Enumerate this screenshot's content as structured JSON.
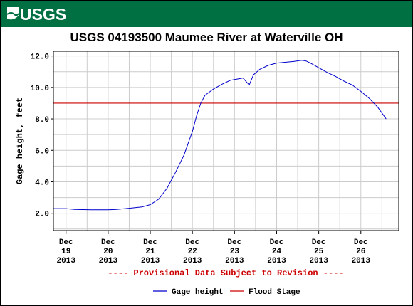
{
  "header": {
    "logo_text": "USGS",
    "title": "USGS 04193500 Maumee River at Waterville OH"
  },
  "colors": {
    "banner": "#006F41",
    "gage_line": "#0000CC",
    "flood_line": "#CC0000",
    "grid": "#CCCCCC",
    "provisional_text": "#CC0000"
  },
  "chart_data": {
    "type": "line",
    "title": "USGS 04193500 Maumee River at Waterville OH",
    "xlabel": "",
    "ylabel": "Gage height, feet",
    "x_unit": "day of December 2013",
    "ylim": [
      0.9,
      12.3
    ],
    "yticks": [
      "2.0",
      "4.0",
      "6.0",
      "8.0",
      "10.0",
      "12.0"
    ],
    "ytick_values": [
      2,
      4,
      6,
      8,
      10,
      12
    ],
    "xticks": [
      {
        "x": 19,
        "lines": [
          "Dec",
          "19",
          "2013"
        ]
      },
      {
        "x": 20,
        "lines": [
          "Dec",
          "20",
          "2013"
        ]
      },
      {
        "x": 21,
        "lines": [
          "Dec",
          "21",
          "2013"
        ]
      },
      {
        "x": 22,
        "lines": [
          "Dec",
          "22",
          "2013"
        ]
      },
      {
        "x": 23,
        "lines": [
          "Dec",
          "23",
          "2013"
        ]
      },
      {
        "x": 24,
        "lines": [
          "Dec",
          "24",
          "2013"
        ]
      },
      {
        "x": 25,
        "lines": [
          "Dec",
          "25",
          "2013"
        ]
      },
      {
        "x": 26,
        "lines": [
          "Dec",
          "26",
          "2013"
        ]
      }
    ],
    "xlim": [
      18.7,
      26.9
    ],
    "grid": true,
    "legend_position": "bottom",
    "series": [
      {
        "name": "Gage height",
        "points": [
          [
            18.7,
            2.3
          ],
          [
            19.0,
            2.3
          ],
          [
            19.2,
            2.25
          ],
          [
            19.6,
            2.22
          ],
          [
            20.0,
            2.22
          ],
          [
            20.2,
            2.25
          ],
          [
            20.5,
            2.32
          ],
          [
            20.8,
            2.4
          ],
          [
            21.0,
            2.55
          ],
          [
            21.2,
            2.9
          ],
          [
            21.4,
            3.6
          ],
          [
            21.6,
            4.6
          ],
          [
            21.8,
            5.7
          ],
          [
            22.0,
            7.2
          ],
          [
            22.1,
            8.2
          ],
          [
            22.2,
            9.0
          ],
          [
            22.3,
            9.5
          ],
          [
            22.5,
            9.9
          ],
          [
            22.7,
            10.2
          ],
          [
            22.9,
            10.45
          ],
          [
            23.0,
            10.5
          ],
          [
            23.1,
            10.55
          ],
          [
            23.2,
            10.6
          ],
          [
            23.3,
            10.3
          ],
          [
            23.35,
            10.15
          ],
          [
            23.45,
            10.8
          ],
          [
            23.6,
            11.15
          ],
          [
            23.8,
            11.4
          ],
          [
            24.0,
            11.55
          ],
          [
            24.2,
            11.6
          ],
          [
            24.4,
            11.65
          ],
          [
            24.6,
            11.72
          ],
          [
            24.7,
            11.68
          ],
          [
            24.8,
            11.55
          ],
          [
            25.0,
            11.25
          ],
          [
            25.2,
            10.95
          ],
          [
            25.4,
            10.7
          ],
          [
            25.6,
            10.4
          ],
          [
            25.8,
            10.15
          ],
          [
            26.0,
            9.75
          ],
          [
            26.2,
            9.3
          ],
          [
            26.4,
            8.75
          ],
          [
            26.6,
            8.0
          ]
        ]
      },
      {
        "name": "Flood Stage",
        "value": 9.0
      }
    ]
  },
  "footer": {
    "provisional_note": "---- Provisional Data Subject to Revision ----"
  },
  "legend": {
    "gage": "Gage height",
    "flood": "Flood Stage"
  }
}
